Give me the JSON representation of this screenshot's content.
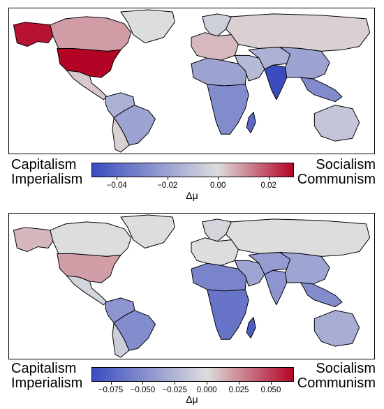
{
  "colors": {
    "neg_strong": "#3b4cc0",
    "neutral": "#dddddd",
    "pos_strong": "#b40426",
    "border": "#000000"
  },
  "panels": [
    {
      "left_label": [
        "Capitalism",
        "Imperialism"
      ],
      "right_label": [
        "Socialism",
        "Communism"
      ],
      "colorbar": {
        "min": -0.05,
        "max": 0.03,
        "ticks": [
          "−0.04",
          "−0.02",
          "0.00",
          "0.02"
        ],
        "tick_values": [
          -0.04,
          -0.02,
          0.0,
          0.02
        ],
        "label": "Δμ"
      },
      "regions": {
        "alaska": 0.028,
        "canada": 0.009,
        "usa": 0.03,
        "greenland": 0.0,
        "mexico_central": 0.003,
        "south_america_north": -0.015,
        "brazil": -0.02,
        "southern_cone": 0.002,
        "europe_west": 0.005,
        "scandinavia": -0.005,
        "russia": 0.002,
        "middle_east": -0.012,
        "north_africa": -0.02,
        "sub_saharan": -0.028,
        "madagascar": -0.04,
        "central_asia": -0.015,
        "india": -0.05,
        "china": -0.02,
        "southeast_asia": -0.028,
        "australia": -0.008
      }
    },
    {
      "left_label": [
        "Capitalism",
        "Imperialism"
      ],
      "right_label": [
        "Socialism",
        "Communism"
      ],
      "colorbar": {
        "min": -0.09,
        "max": 0.068,
        "ticks": [
          "−0.075",
          "−0.050",
          "−0.025",
          "0.000",
          "0.025",
          "0.050"
        ],
        "tick_values": [
          -0.075,
          -0.05,
          -0.025,
          0.0,
          0.025,
          0.05
        ],
        "label": "Δμ"
      },
      "regions": {
        "alaska": 0.012,
        "canada": 0.0,
        "usa": 0.02,
        "greenland": 0.0,
        "mexico_central": -0.005,
        "south_america_north": -0.045,
        "brazil": -0.05,
        "southern_cone": -0.01,
        "europe_west": 0.0,
        "scandinavia": -0.005,
        "russia": 0.0,
        "middle_east": -0.035,
        "north_africa": -0.055,
        "sub_saharan": -0.065,
        "madagascar": -0.08,
        "central_asia": -0.04,
        "india": -0.045,
        "china": -0.035,
        "southeast_asia": -0.05,
        "australia": -0.03
      }
    }
  ]
}
